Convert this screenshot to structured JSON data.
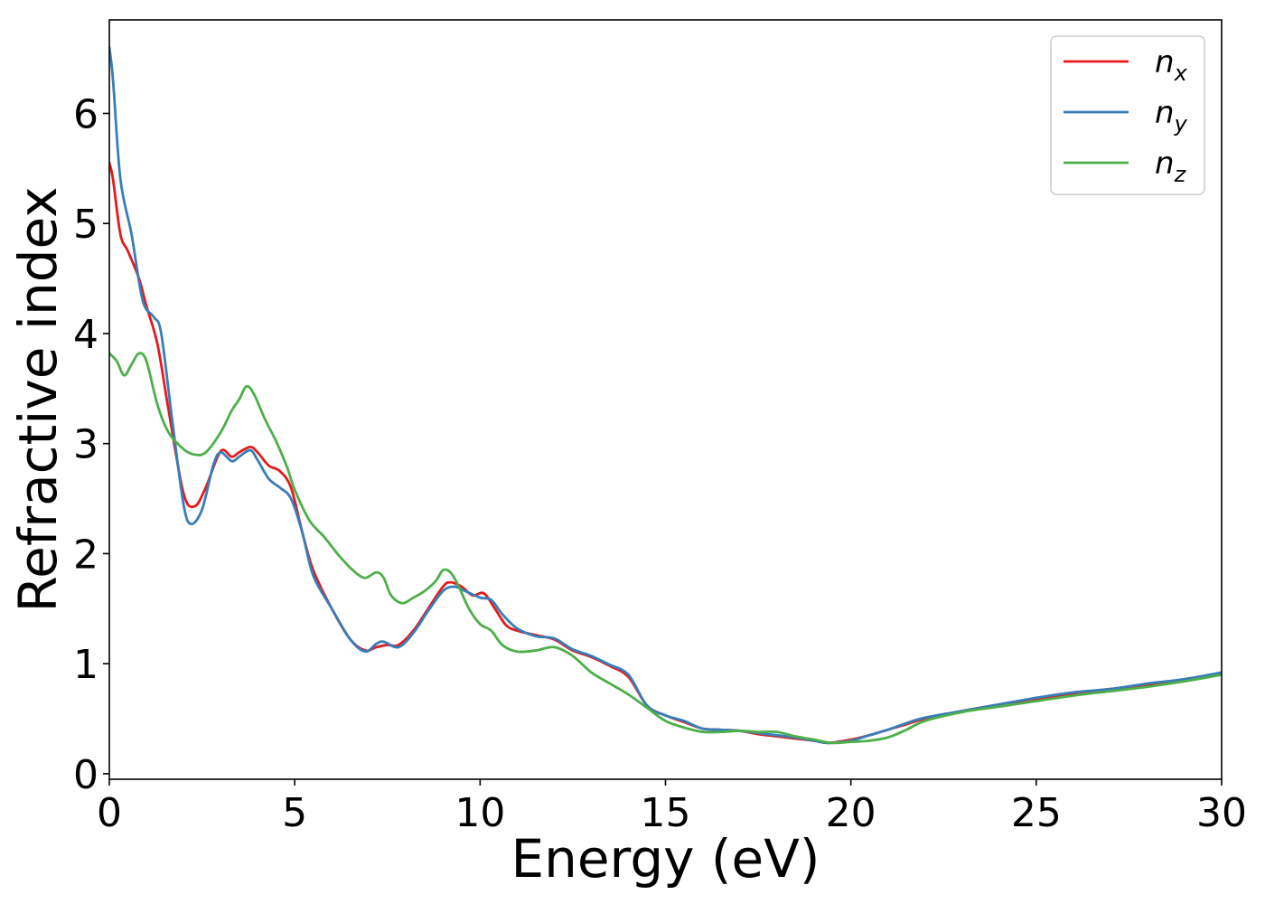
{
  "chart_data": {
    "type": "line",
    "title": "",
    "xlabel": "Energy (eV)",
    "ylabel": "Refractive index",
    "xlim": [
      0,
      30
    ],
    "ylim": [
      -0.05,
      6.85
    ],
    "xticks": [
      0,
      5,
      10,
      15,
      20,
      25,
      30
    ],
    "yticks": [
      0,
      1,
      2,
      3,
      4,
      5,
      6
    ],
    "grid": false,
    "legend_position": "top-right",
    "series": [
      {
        "name": "n_x",
        "legend_base": "n",
        "legend_sub": "x",
        "color": "#e41a1c",
        "x": [
          0,
          0.1,
          0.3,
          0.5,
          0.8,
          1.0,
          1.3,
          1.6,
          2.0,
          2.3,
          2.6,
          3.0,
          3.3,
          3.5,
          3.8,
          4.0,
          4.3,
          4.6,
          4.9,
          5.2,
          5.5,
          6.0,
          6.5,
          6.9,
          7.2,
          7.5,
          7.8,
          8.2,
          8.6,
          9.0,
          9.2,
          9.5,
          9.8,
          10.1,
          10.4,
          10.7,
          11.0,
          11.5,
          12.0,
          12.5,
          13.0,
          13.5,
          14.0,
          14.5,
          15.0,
          15.5,
          16.0,
          16.5,
          17.0,
          17.5,
          18.0,
          18.5,
          19.0,
          19.4,
          20.0,
          20.5,
          21.0,
          21.5,
          22.0,
          23.0,
          24.0,
          25.0,
          26.0,
          27.0,
          28.0,
          29.0,
          30.0
        ],
        "y": [
          5.55,
          5.4,
          4.9,
          4.75,
          4.5,
          4.25,
          3.9,
          3.3,
          2.55,
          2.43,
          2.6,
          2.93,
          2.88,
          2.92,
          2.97,
          2.92,
          2.8,
          2.75,
          2.6,
          2.2,
          1.85,
          1.5,
          1.22,
          1.12,
          1.15,
          1.17,
          1.17,
          1.3,
          1.5,
          1.7,
          1.74,
          1.7,
          1.62,
          1.64,
          1.5,
          1.35,
          1.3,
          1.26,
          1.22,
          1.12,
          1.06,
          0.98,
          0.88,
          0.62,
          0.53,
          0.47,
          0.41,
          0.4,
          0.39,
          0.36,
          0.34,
          0.32,
          0.3,
          0.28,
          0.31,
          0.35,
          0.4,
          0.45,
          0.5,
          0.57,
          0.63,
          0.68,
          0.73,
          0.77,
          0.81,
          0.86,
          0.91
        ]
      },
      {
        "name": "n_y",
        "legend_base": "n",
        "legend_sub": "y",
        "color": "#377eb8",
        "x": [
          0,
          0.1,
          0.3,
          0.6,
          0.9,
          1.2,
          1.4,
          1.7,
          2.0,
          2.2,
          2.5,
          2.8,
          3.0,
          3.3,
          3.5,
          3.8,
          4.0,
          4.3,
          4.6,
          4.9,
          5.2,
          5.5,
          6.0,
          6.5,
          6.9,
          7.2,
          7.4,
          7.8,
          8.2,
          8.6,
          9.0,
          9.3,
          9.6,
          10.0,
          10.3,
          10.6,
          11.0,
          11.5,
          12.0,
          12.5,
          13.0,
          13.5,
          14.0,
          14.5,
          15.0,
          15.5,
          16.0,
          16.5,
          17.0,
          17.5,
          18.0,
          18.5,
          19.0,
          19.4,
          20.0,
          20.5,
          21.0,
          21.5,
          22.0,
          23.0,
          24.0,
          25.0,
          26.0,
          27.0,
          28.0,
          29.0,
          30.0
        ],
        "y": [
          6.6,
          6.3,
          5.4,
          4.9,
          4.3,
          4.15,
          4.0,
          3.2,
          2.45,
          2.27,
          2.4,
          2.8,
          2.92,
          2.84,
          2.88,
          2.94,
          2.85,
          2.68,
          2.6,
          2.5,
          2.2,
          1.8,
          1.5,
          1.22,
          1.11,
          1.18,
          1.2,
          1.15,
          1.28,
          1.48,
          1.66,
          1.7,
          1.66,
          1.6,
          1.58,
          1.45,
          1.32,
          1.25,
          1.23,
          1.13,
          1.07,
          0.99,
          0.9,
          0.62,
          0.53,
          0.48,
          0.41,
          0.4,
          0.39,
          0.37,
          0.35,
          0.33,
          0.3,
          0.28,
          0.3,
          0.35,
          0.4,
          0.46,
          0.51,
          0.57,
          0.63,
          0.69,
          0.74,
          0.77,
          0.82,
          0.86,
          0.92
        ]
      },
      {
        "name": "n_z",
        "legend_base": "n",
        "legend_sub": "z",
        "color": "#4daf4a",
        "x": [
          0,
          0.2,
          0.4,
          0.6,
          0.8,
          1.0,
          1.3,
          1.6,
          2.0,
          2.3,
          2.6,
          3.0,
          3.3,
          3.5,
          3.7,
          3.9,
          4.2,
          4.5,
          4.8,
          5.0,
          5.4,
          5.8,
          6.2,
          6.6,
          6.9,
          7.2,
          7.4,
          7.6,
          7.9,
          8.2,
          8.5,
          8.8,
          9.0,
          9.2,
          9.4,
          9.7,
          10.0,
          10.3,
          10.6,
          11.0,
          11.5,
          12.0,
          12.5,
          13.0,
          13.5,
          14.0,
          14.5,
          15.0,
          15.5,
          16.0,
          16.5,
          17.0,
          17.5,
          18.0,
          18.5,
          19.0,
          19.5,
          20.0,
          20.5,
          21.0,
          21.5,
          22.0,
          23.0,
          24.0,
          25.0,
          26.0,
          27.0,
          28.0,
          29.0,
          30.0
        ],
        "y": [
          3.82,
          3.75,
          3.62,
          3.72,
          3.82,
          3.75,
          3.35,
          3.1,
          2.95,
          2.9,
          2.92,
          3.1,
          3.3,
          3.4,
          3.52,
          3.45,
          3.22,
          3.02,
          2.78,
          2.58,
          2.3,
          2.15,
          1.98,
          1.84,
          1.78,
          1.83,
          1.78,
          1.62,
          1.55,
          1.6,
          1.66,
          1.75,
          1.85,
          1.83,
          1.72,
          1.5,
          1.36,
          1.3,
          1.17,
          1.11,
          1.12,
          1.15,
          1.07,
          0.92,
          0.82,
          0.72,
          0.6,
          0.48,
          0.42,
          0.38,
          0.38,
          0.39,
          0.38,
          0.38,
          0.34,
          0.31,
          0.28,
          0.29,
          0.3,
          0.33,
          0.4,
          0.48,
          0.56,
          0.61,
          0.66,
          0.71,
          0.75,
          0.79,
          0.84,
          0.9
        ]
      }
    ]
  }
}
